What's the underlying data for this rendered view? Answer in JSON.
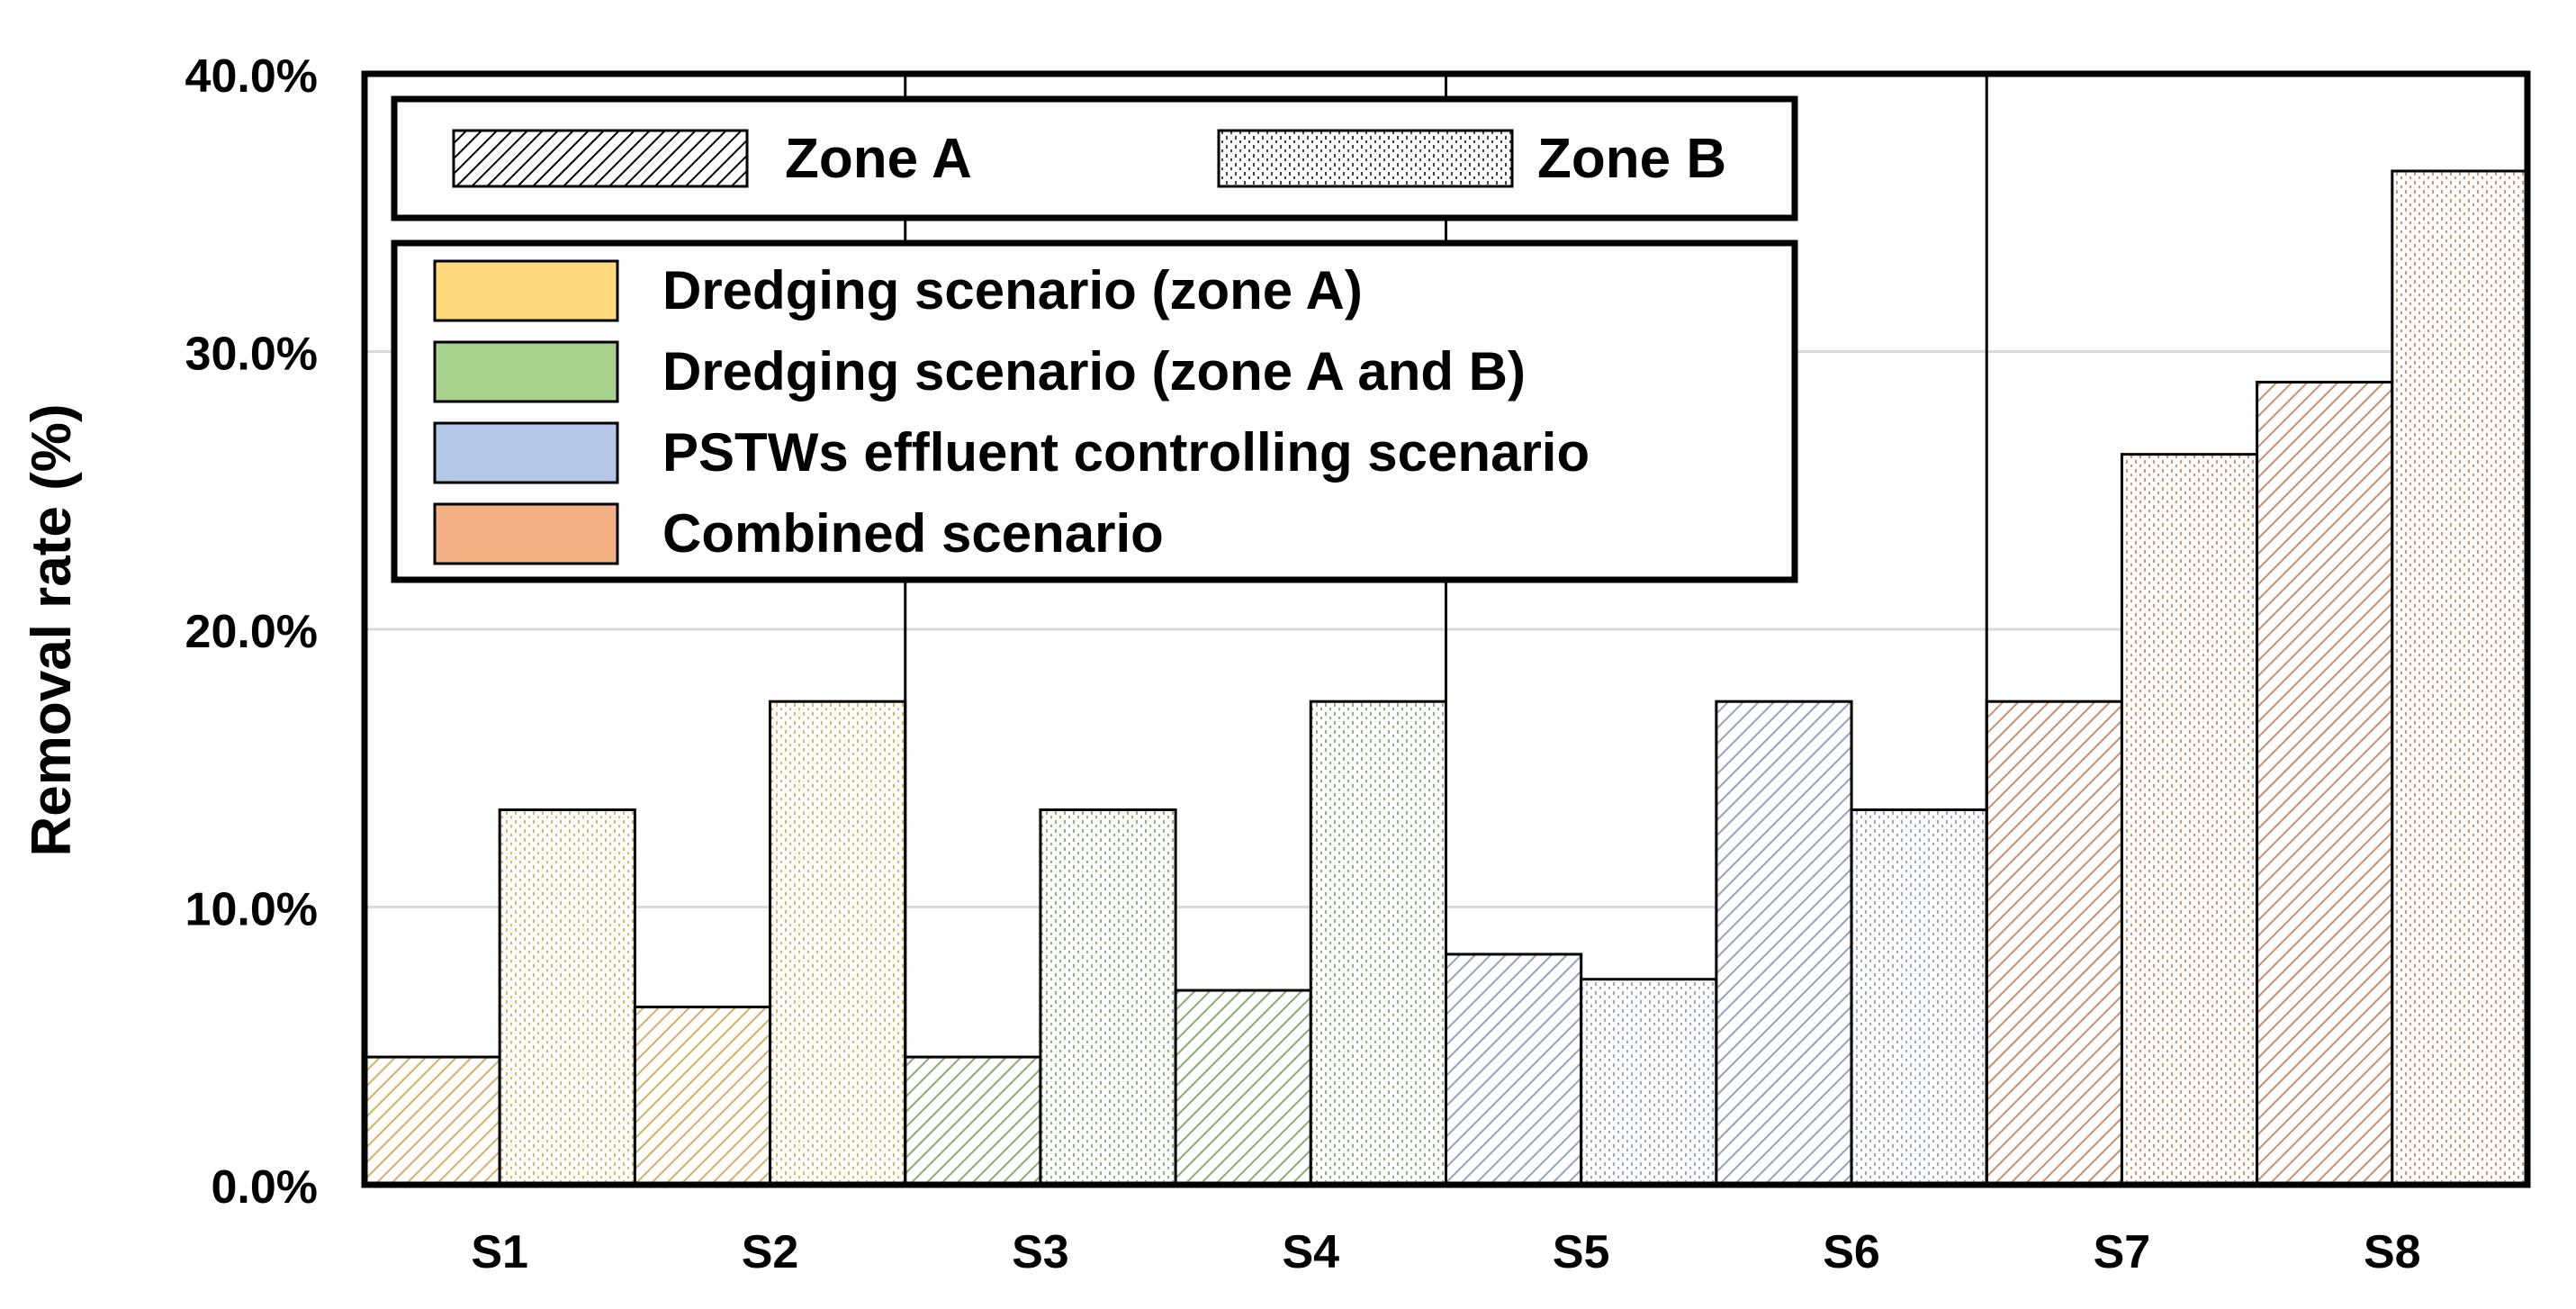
{
  "chart_data": {
    "type": "bar",
    "title": "",
    "xlabel": "",
    "ylabel": "Removal rate (%)",
    "ylim": [
      0,
      40
    ],
    "yticks": [
      {
        "value": 0,
        "label": "0.0%"
      },
      {
        "value": 10,
        "label": "10.0%"
      },
      {
        "value": 20,
        "label": "20.0%"
      },
      {
        "value": 30,
        "label": "30.0%"
      },
      {
        "value": 40,
        "label": "40.0%"
      }
    ],
    "grid": true,
    "categories": [
      "S1",
      "S2",
      "S3",
      "S4",
      "S5",
      "S6",
      "S7",
      "S8"
    ],
    "category_scenario": [
      "dredging_a",
      "dredging_a",
      "dredging_ab",
      "dredging_ab",
      "pstw",
      "pstw",
      "combined",
      "combined"
    ],
    "series": [
      {
        "name": "Zone A",
        "pattern": "hatch",
        "values": [
          4.6,
          6.4,
          4.6,
          7.0,
          8.3,
          17.4,
          17.4,
          28.9
        ]
      },
      {
        "name": "Zone B",
        "pattern": "dots",
        "values": [
          13.5,
          17.4,
          13.5,
          17.4,
          7.4,
          13.5,
          26.3,
          36.5
        ]
      }
    ],
    "scenarios": [
      {
        "key": "dredging_a",
        "label": "Dredging scenario (zone A)",
        "color": "#ffd97a"
      },
      {
        "key": "dredging_ab",
        "label": "Dredging scenario (zone A and B)",
        "color": "#a9d18e"
      },
      {
        "key": "pstw",
        "label": "PSTWs effluent controlling scenario",
        "color": "#b4c7e7"
      },
      {
        "key": "combined",
        "label": "Combined scenario",
        "color": "#f4b183"
      }
    ],
    "legend_placement": "top-left"
  }
}
